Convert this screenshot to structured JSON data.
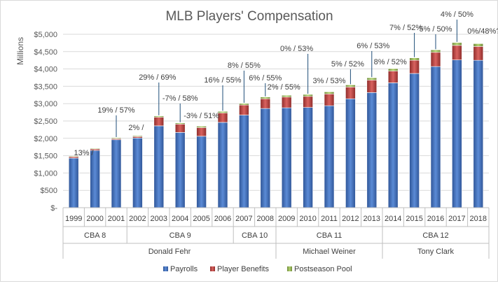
{
  "chart_data": {
    "type": "bar",
    "stacked": true,
    "title": "MLB Players' Compensation",
    "ylabel": "Millions",
    "xlabel": "",
    "ylim": [
      0,
      5000
    ],
    "yticks": [
      0,
      500,
      1000,
      1500,
      2000,
      2500,
      3000,
      3500,
      4000,
      4500,
      5000
    ],
    "ytick_labels": [
      "$-",
      "$500",
      "$1,000",
      "$1,500",
      "$2,000",
      "$2,500",
      "$3,000",
      "$3,500",
      "$4,000",
      "$4,500",
      "$5,000"
    ],
    "grid": true,
    "legend_position": "bottom",
    "categories": [
      "1999",
      "2000",
      "2001",
      "2002",
      "2003",
      "2004",
      "2005",
      "2006",
      "2007",
      "2008",
      "2009",
      "2010",
      "2011",
      "2012",
      "2013",
      "2014",
      "2015",
      "2016",
      "2017",
      "2018"
    ],
    "series": [
      {
        "name": "Payrolls",
        "color": "#4472c4",
        "values": [
          1430,
          1650,
          1960,
          2010,
          2360,
          2170,
          2060,
          2460,
          2670,
          2860,
          2880,
          2890,
          2940,
          3140,
          3320,
          3600,
          3870,
          4070,
          4260,
          4250
        ]
      },
      {
        "name": "Player Benefits",
        "color": "#c0504d",
        "values": [
          40,
          40,
          30,
          40,
          250,
          240,
          250,
          270,
          290,
          280,
          310,
          320,
          340,
          340,
          360,
          340,
          380,
          410,
          420,
          400
        ]
      },
      {
        "name": "Postseason Pool",
        "color": "#9bbb59",
        "values": [
          20,
          20,
          25,
          25,
          35,
          35,
          40,
          45,
          45,
          50,
          50,
          55,
          60,
          60,
          65,
          70,
          70,
          70,
          80,
          80
        ]
      }
    ],
    "annotations": [
      {
        "category": "2000",
        "text": "13% /"
      },
      {
        "category": "2001",
        "text": "19% / 57%"
      },
      {
        "category": "2002",
        "text": "2% /"
      },
      {
        "category": "2003",
        "text": "29% / 69%"
      },
      {
        "category": "2004",
        "text": "-7% / 58%"
      },
      {
        "category": "2005",
        "text": "-3% / 51%"
      },
      {
        "category": "2006",
        "text": "16% / 55%"
      },
      {
        "category": "2007",
        "text": "8% / 55%"
      },
      {
        "category": "2008",
        "text": "6% / 55%"
      },
      {
        "category": "2009",
        "text": "2% / 55%"
      },
      {
        "category": "2010",
        "text": "0% / 53%"
      },
      {
        "category": "2011",
        "text": "3% / 53%"
      },
      {
        "category": "2012",
        "text": "5% / 52%"
      },
      {
        "category": "2013",
        "text": "6% / 53%"
      },
      {
        "category": "2014",
        "text": "8% / 52%"
      },
      {
        "category": "2015",
        "text": "7% / 52%"
      },
      {
        "category": "2016",
        "text": "5% / 50%"
      },
      {
        "category": "2017",
        "text": "4% / 50%"
      },
      {
        "category": "2018",
        "text": "0%/48%?"
      }
    ],
    "cba_groups": [
      {
        "label": "CBA 8",
        "from": "1999",
        "to": "2001"
      },
      {
        "label": "CBA 9",
        "from": "2002",
        "to": "2006"
      },
      {
        "label": "CBA 10",
        "from": "2007",
        "to": "2008"
      },
      {
        "label": "CBA 11",
        "from": "2009",
        "to": "2013"
      },
      {
        "label": "CBA 12",
        "from": "2014",
        "to": "2018"
      }
    ],
    "leader_groups": [
      {
        "label": "Donald Fehr",
        "from": "1999",
        "to": "2008"
      },
      {
        "label": "Michael Weiner",
        "from": "2009",
        "to": "2013"
      },
      {
        "label": "Tony Clark",
        "from": "2014",
        "to": "2018"
      }
    ]
  }
}
